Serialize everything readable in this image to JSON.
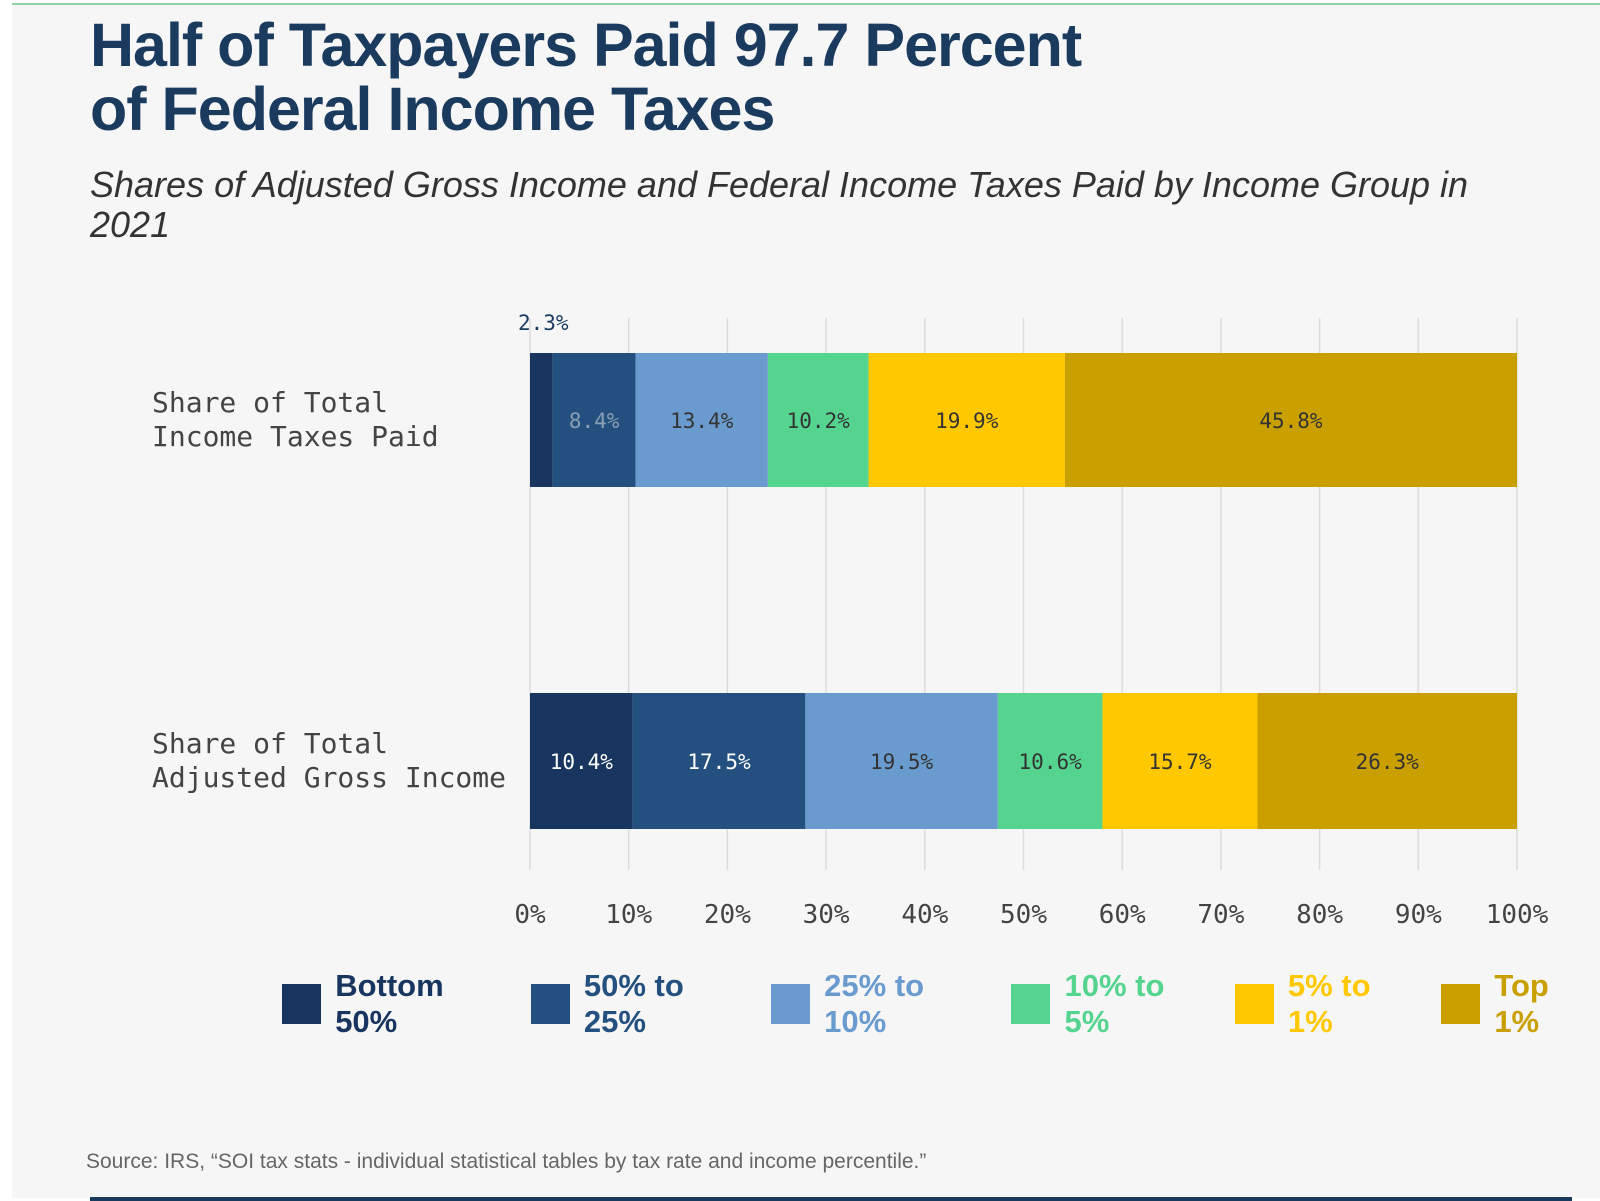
{
  "title_line1": "Half of Taxpayers Paid 97.7 Percent",
  "title_line2": "of Federal Income Taxes",
  "subtitle": "Shares of Adjusted Gross Income and Federal Income Taxes Paid by Income Group in 2021",
  "source": "Source: IRS, “SOI tax stats - individual statistical tables by tax rate and income percentile.”",
  "chart_data": {
    "type": "bar",
    "orientation": "horizontal",
    "stacked": true,
    "title": "Half of Taxpayers Paid 97.7 Percent of Federal Income Taxes",
    "categories": [
      {
        "line1": "Share of Total",
        "line2": "Income Taxes Paid"
      },
      {
        "line1": "Share of Total",
        "line2": "Adjusted Gross Income"
      }
    ],
    "series": [
      {
        "name": "Bottom 50%",
        "color": "#17355e",
        "values": [
          2.3,
          10.4
        ],
        "labels": [
          "2.3%",
          "10.4%"
        ]
      },
      {
        "name": "50% to 25%",
        "color": "#24507f",
        "values": [
          8.4,
          17.5
        ],
        "labels": [
          "8.4%",
          "17.5%"
        ]
      },
      {
        "name": "25% to 10%",
        "color": "#6a9bcf",
        "values": [
          13.4,
          19.5
        ],
        "labels": [
          "13.4%",
          "19.5%"
        ]
      },
      {
        "name": "10% to 5%",
        "color": "#55d490",
        "values": [
          10.2,
          10.6
        ],
        "labels": [
          "10.2%",
          "10.6%"
        ]
      },
      {
        "name": "5% to 1%",
        "color": "#ffc800",
        "values": [
          19.9,
          15.7
        ],
        "labels": [
          "19.9%",
          "15.7%"
        ]
      },
      {
        "name": "Top 1%",
        "color": "#c9a000",
        "values": [
          45.8,
          26.3
        ],
        "labels": [
          "45.8%",
          "26.3%"
        ]
      }
    ],
    "xlim": [
      0,
      100
    ],
    "xticks": [
      "0%",
      "10%",
      "20%",
      "30%",
      "40%",
      "50%",
      "60%",
      "70%",
      "80%",
      "90%",
      "100%"
    ],
    "grid": true,
    "legend": "bottom"
  }
}
